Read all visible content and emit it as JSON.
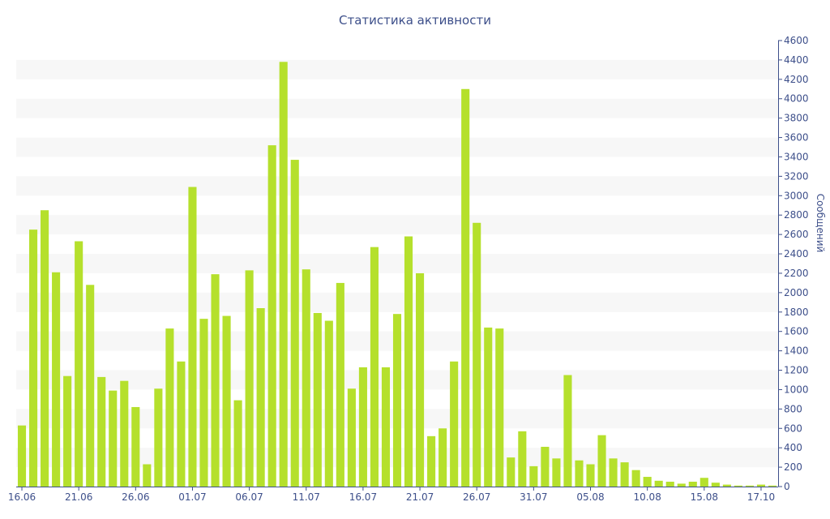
{
  "chart_data": {
    "type": "bar",
    "title": "Статистика активности",
    "ylabel": "Сообщений",
    "xlabel": "",
    "ylim": [
      0,
      4600
    ],
    "y_ticks": [
      0,
      200,
      400,
      600,
      800,
      1000,
      1200,
      1400,
      1600,
      1800,
      2000,
      2200,
      2400,
      2600,
      2800,
      3000,
      3200,
      3400,
      3600,
      3800,
      4000,
      4200,
      4400,
      4600
    ],
    "y_axis_position": "right",
    "grid": "alternating-bands",
    "legend": "none",
    "x_tick_labels": [
      {
        "label": "16.06",
        "index": 0
      },
      {
        "label": "21.06",
        "index": 5
      },
      {
        "label": "26.06",
        "index": 10
      },
      {
        "label": "01.07",
        "index": 15
      },
      {
        "label": "06.07",
        "index": 20
      },
      {
        "label": "11.07",
        "index": 25
      },
      {
        "label": "16.07",
        "index": 30
      },
      {
        "label": "21.07",
        "index": 35
      },
      {
        "label": "26.07",
        "index": 40
      },
      {
        "label": "31.07",
        "index": 45
      },
      {
        "label": "05.08",
        "index": 50
      },
      {
        "label": "10.08",
        "index": 55
      },
      {
        "label": "15.08",
        "index": 60
      },
      {
        "label": "17.10",
        "index": 65
      }
    ],
    "values": [
      630,
      2650,
      2850,
      2210,
      1140,
      2530,
      2080,
      1130,
      990,
      1090,
      820,
      230,
      1010,
      1630,
      1290,
      3090,
      1730,
      2190,
      1760,
      890,
      2230,
      1840,
      3520,
      4380,
      3370,
      2240,
      1790,
      1710,
      2100,
      1010,
      1230,
      2470,
      1230,
      1780,
      2580,
      2200,
      520,
      600,
      1290,
      4100,
      2720,
      1640,
      1630,
      300,
      570,
      210,
      410,
      290,
      1150,
      270,
      230,
      530,
      290,
      250,
      170,
      100,
      60,
      50,
      30,
      50,
      90,
      40,
      20,
      10,
      10,
      20,
      10
    ],
    "colors": {
      "bar": "#b5e02c",
      "text": "#3d4f8a",
      "band": "#f7f7f7",
      "axis": "#3d4f8a"
    }
  }
}
